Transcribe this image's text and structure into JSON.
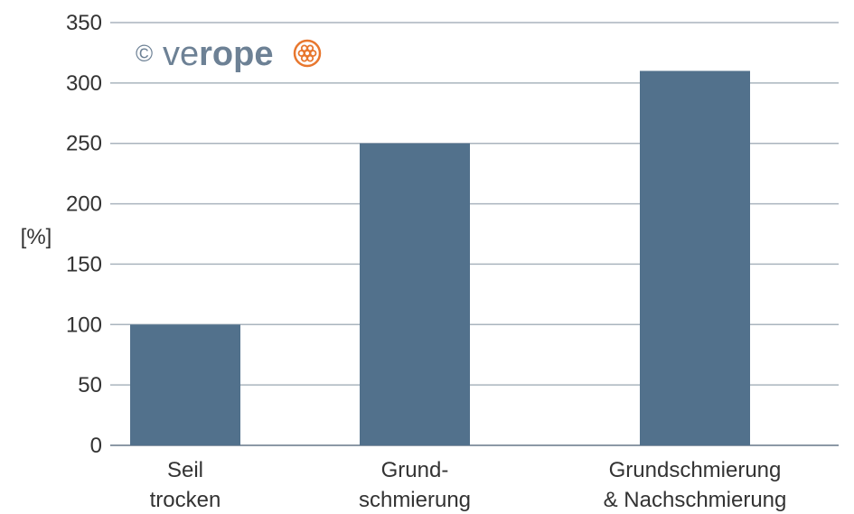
{
  "chart_data": {
    "type": "bar",
    "categories": [
      [
        "Seil",
        "trocken"
      ],
      [
        "Grund-",
        "schmierung"
      ],
      [
        "Grundschmierung",
        "& Nachschmierung"
      ]
    ],
    "values": [
      100,
      250,
      310
    ],
    "ylabel": "[%]",
    "ylim": [
      0,
      350
    ],
    "yticks": [
      0,
      50,
      100,
      150,
      200,
      250,
      300,
      350
    ],
    "grid": true,
    "colors": {
      "bar": "#52718c",
      "grid": "#aab4be",
      "axis": "#8c99a6"
    }
  },
  "watermark": {
    "copyright": "©",
    "brand_light": "ve",
    "brand_bold": "rope",
    "brand_color": "#6d8195",
    "icon_color": "#e8772e"
  }
}
